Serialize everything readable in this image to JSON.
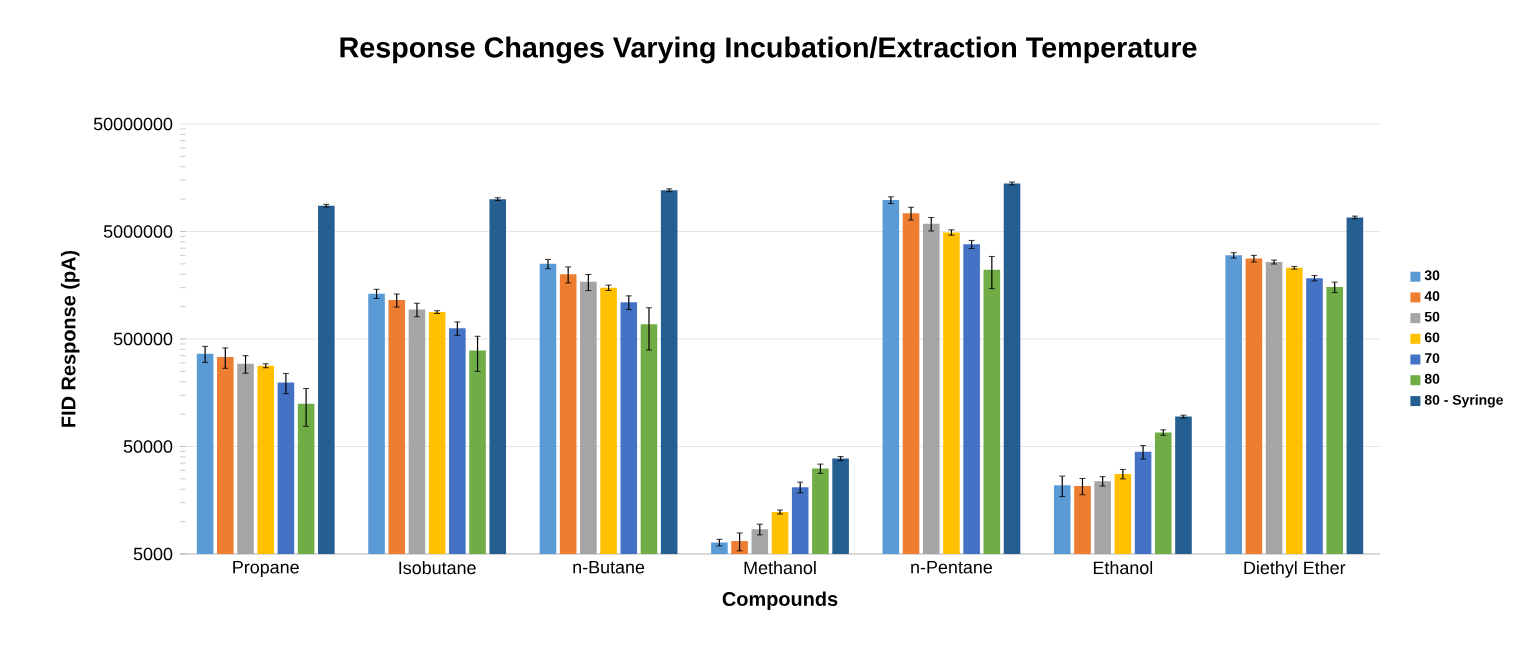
{
  "chart_data": {
    "type": "bar",
    "title": "Response Changes Varying Incubation/Extraction Temperature",
    "xlabel": "Compounds",
    "ylabel": "FID Response (pA)",
    "categories": [
      "Propane",
      "Isobutane",
      "n-Butane",
      "Methanol",
      "n-Pentane",
      "Ethanol",
      "Diethyl Ether"
    ],
    "log": true,
    "ylim": [
      5000,
      50000000
    ],
    "yticks": [
      5000,
      50000,
      500000,
      5000000,
      50000000
    ],
    "grid": "y",
    "legend": "right",
    "series": [
      {
        "name": "30",
        "color": "#5b9bd5",
        "values": [
          365000,
          1320000,
          2500000,
          6400,
          9800000,
          21800,
          3000000
        ],
        "errors": [
          62000,
          130000,
          250000,
          450,
          700000,
          4700,
          170000
        ]
      },
      {
        "name": "40",
        "color": "#ed7d31",
        "values": [
          340000,
          1150000,
          2000000,
          6600,
          7400000,
          21500,
          2800000
        ],
        "errors": [
          73000,
          160000,
          340000,
          1250,
          1000000,
          3700,
          200000
        ]
      },
      {
        "name": "50",
        "color": "#a5a5a5",
        "values": [
          295000,
          940000,
          1700000,
          8500,
          5900000,
          23800,
          2600000
        ],
        "errors": [
          55000,
          135000,
          290000,
          970,
          850000,
          2400,
          110000
        ]
      },
      {
        "name": "60",
        "color": "#ffc000",
        "values": [
          282000,
          890000,
          1500000,
          12300,
          4900000,
          27800,
          2300000
        ],
        "errors": [
          12000,
          27000,
          86000,
          530,
          280000,
          2800,
          66000
        ]
      },
      {
        "name": "70",
        "color": "#4472c4",
        "values": [
          197000,
          630000,
          1100000,
          20900,
          3800000,
          44600,
          1840000
        ],
        "errors": [
          42000,
          90000,
          160000,
          2400,
          330000,
          6400,
          105000
        ]
      },
      {
        "name": "80",
        "color": "#70ad47",
        "values": [
          125000,
          390000,
          685000,
          31200,
          2200000,
          67500,
          1520000
        ],
        "errors": [
          48000,
          140000,
          290000,
          3100,
          730000,
          3900,
          170000
        ]
      },
      {
        "name": "80 - Syringe",
        "color": "#255e91",
        "values": [
          8700000,
          10000000,
          12100000,
          38600,
          14000000,
          95000,
          6750000
        ],
        "errors": [
          250000,
          300000,
          360000,
          1650,
          420000,
          2700,
          200000
        ]
      }
    ]
  }
}
